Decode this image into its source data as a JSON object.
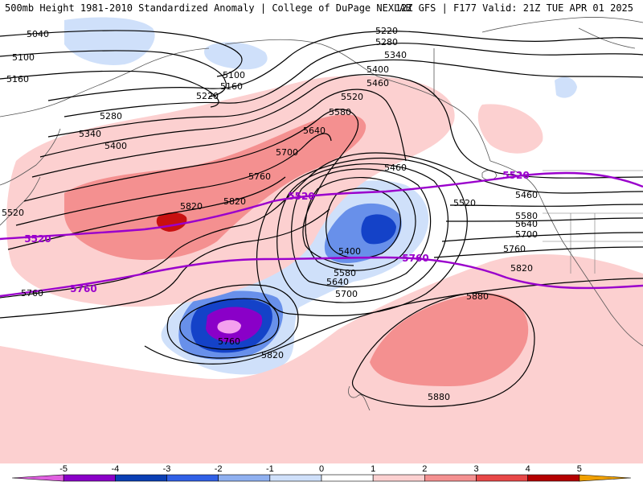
{
  "header": {
    "title_left": "500mb Height 1981-2010 Standardized Anomaly | College of DuPage NEXLAB",
    "title_right": "12Z GFS | F177 Valid: 21Z TUE APR 01 2025"
  },
  "colors": {
    "black_contours": "#000000",
    "purple_contours": "#9a00cc",
    "coast": "#555555"
  },
  "contour_labels": [
    {
      "id": "5040",
      "text": "5040"
    },
    {
      "id": "5100a",
      "text": "5100"
    },
    {
      "id": "5100b",
      "text": "5100"
    },
    {
      "id": "5160a",
      "text": "5160"
    },
    {
      "id": "5160b",
      "text": "5160"
    },
    {
      "id": "5220a",
      "text": "5220"
    },
    {
      "id": "5220b",
      "text": "5220"
    },
    {
      "id": "5280a",
      "text": "5280"
    },
    {
      "id": "5280b",
      "text": "5280"
    },
    {
      "id": "5340a",
      "text": "5340"
    },
    {
      "id": "5340b",
      "text": "5340"
    },
    {
      "id": "5400a",
      "text": "5400"
    },
    {
      "id": "5400b",
      "text": "5400"
    },
    {
      "id": "5460a",
      "text": "5460"
    },
    {
      "id": "5520a",
      "text": "5520"
    },
    {
      "id": "5580a",
      "text": "5580"
    },
    {
      "id": "5640a",
      "text": "5640"
    },
    {
      "id": "5700a",
      "text": "5700"
    },
    {
      "id": "5760a",
      "text": "5760"
    },
    {
      "id": "5820a",
      "text": "5820"
    },
    {
      "id": "5520b",
      "text": "5520"
    },
    {
      "id": "5460b",
      "text": "5460"
    },
    {
      "id": "5400c",
      "text": "5400"
    },
    {
      "id": "5580b",
      "text": "5580"
    },
    {
      "id": "5640b",
      "text": "5640"
    },
    {
      "id": "5700b",
      "text": "5700"
    },
    {
      "id": "5760b",
      "text": "5760"
    },
    {
      "id": "5820b",
      "text": "5820"
    },
    {
      "id": "5460c",
      "text": "5460"
    },
    {
      "id": "5520c",
      "text": "5520"
    },
    {
      "id": "5580c",
      "text": "5580"
    },
    {
      "id": "5640c",
      "text": "5640"
    },
    {
      "id": "5700c",
      "text": "5700"
    },
    {
      "id": "5760c",
      "text": "5760"
    },
    {
      "id": "5820c",
      "text": "5820"
    },
    {
      "id": "5880a",
      "text": "5880"
    },
    {
      "id": "5880b",
      "text": "5880"
    },
    {
      "id": "5760d",
      "text": "5760"
    },
    {
      "id": "5820d",
      "text": "5820"
    }
  ],
  "purple_labels": [
    {
      "id": "p5520a",
      "text": "5520"
    },
    {
      "id": "p5520b",
      "text": "5520"
    },
    {
      "id": "p5520c",
      "text": "5520"
    },
    {
      "id": "p5760a",
      "text": "5760"
    },
    {
      "id": "p5760b",
      "text": "5760"
    }
  ],
  "colorbar": {
    "ticks": [
      "-5",
      "-4",
      "-3",
      "-2",
      "-1",
      "0",
      "1",
      "2",
      "3",
      "4",
      "5"
    ],
    "colors": [
      "#e060e0",
      "#8a00c8",
      "#0a3fb4",
      "#3060e6",
      "#8fb0f0",
      "#cfe0fa",
      "#ffffff",
      "#fcd0d0",
      "#f49090",
      "#e84848",
      "#b40000",
      "#f0a000"
    ]
  }
}
